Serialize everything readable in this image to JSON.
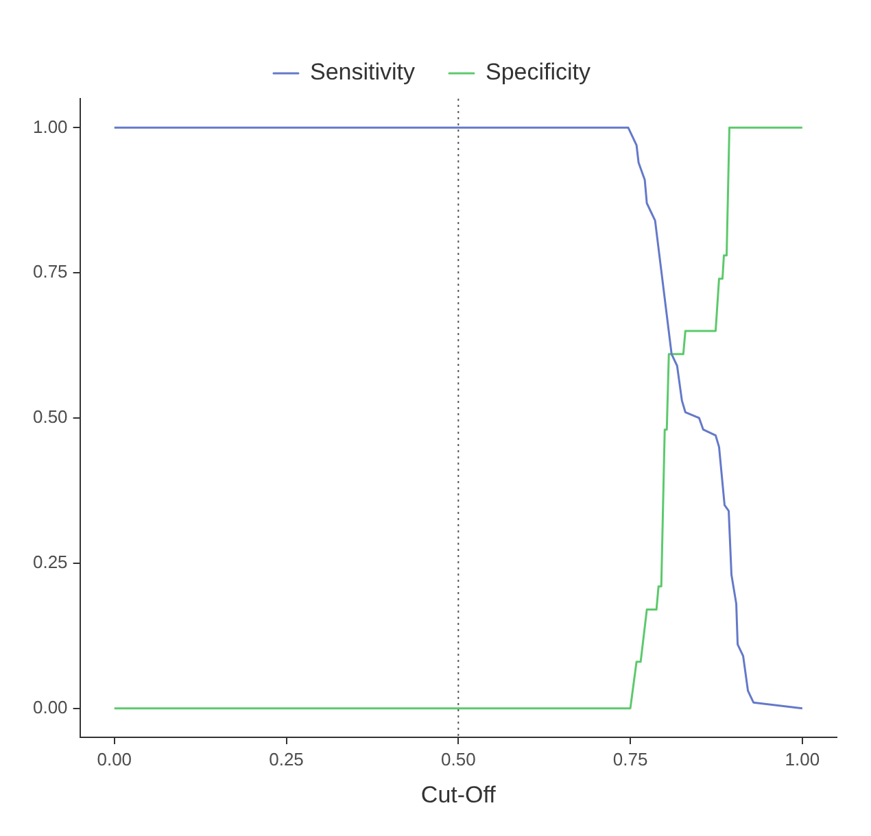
{
  "chart_data": {
    "type": "line",
    "xlabel": "Cut-Off",
    "xlim": [
      -0.05,
      1.05
    ],
    "ylim": [
      -0.05,
      1.05
    ],
    "xticks": [
      {
        "value": 0,
        "label": "0.00"
      },
      {
        "value": 0.25,
        "label": "0.25"
      },
      {
        "value": 0.5,
        "label": "0.50"
      },
      {
        "value": 0.75,
        "label": "0.75"
      },
      {
        "value": 1,
        "label": "1.00"
      }
    ],
    "yticks": [
      {
        "value": 0,
        "label": "0.00"
      },
      {
        "value": 0.25,
        "label": "0.25"
      },
      {
        "value": 0.5,
        "label": "0.50"
      },
      {
        "value": 0.75,
        "label": "0.75"
      },
      {
        "value": 1,
        "label": "1.00"
      }
    ],
    "grid": false,
    "legend": "top",
    "marker": "none",
    "line_style": "solid",
    "ref_lines": [
      {
        "axis": "x",
        "value": 0.5,
        "label": null,
        "line_style": "dotted",
        "color": "#555555"
      }
    ],
    "series": [
      {
        "name": "Sensitivity",
        "color": "#6479c9",
        "x": [
          0,
          0.747,
          0.759,
          0.762,
          0.771,
          0.774,
          0.786,
          0.81,
          0.818,
          0.825,
          0.83,
          0.85,
          0.856,
          0.874,
          0.879,
          0.887,
          0.893,
          0.897,
          0.904,
          0.906,
          0.914,
          0.921,
          0.929,
          1
        ],
        "values": [
          1,
          1,
          0.97,
          0.94,
          0.91,
          0.87,
          0.84,
          0.61,
          0.59,
          0.53,
          0.51,
          0.5,
          0.48,
          0.47,
          0.45,
          0.35,
          0.34,
          0.23,
          0.18,
          0.11,
          0.09,
          0.03,
          0.01,
          0
        ]
      },
      {
        "name": "Specificity",
        "color": "#5cc96c",
        "x": [
          0,
          0.75,
          0.759,
          0.765,
          0.774,
          0.788,
          0.791,
          0.795,
          0.8,
          0.803,
          0.806,
          0.827,
          0.83,
          0.874,
          0.879,
          0.884,
          0.886,
          0.89,
          0.894,
          1
        ],
        "values": [
          0,
          0,
          0.08,
          0.08,
          0.17,
          0.17,
          0.21,
          0.21,
          0.48,
          0.48,
          0.61,
          0.61,
          0.65,
          0.65,
          0.74,
          0.74,
          0.78,
          0.78,
          1,
          1
        ]
      }
    ]
  }
}
